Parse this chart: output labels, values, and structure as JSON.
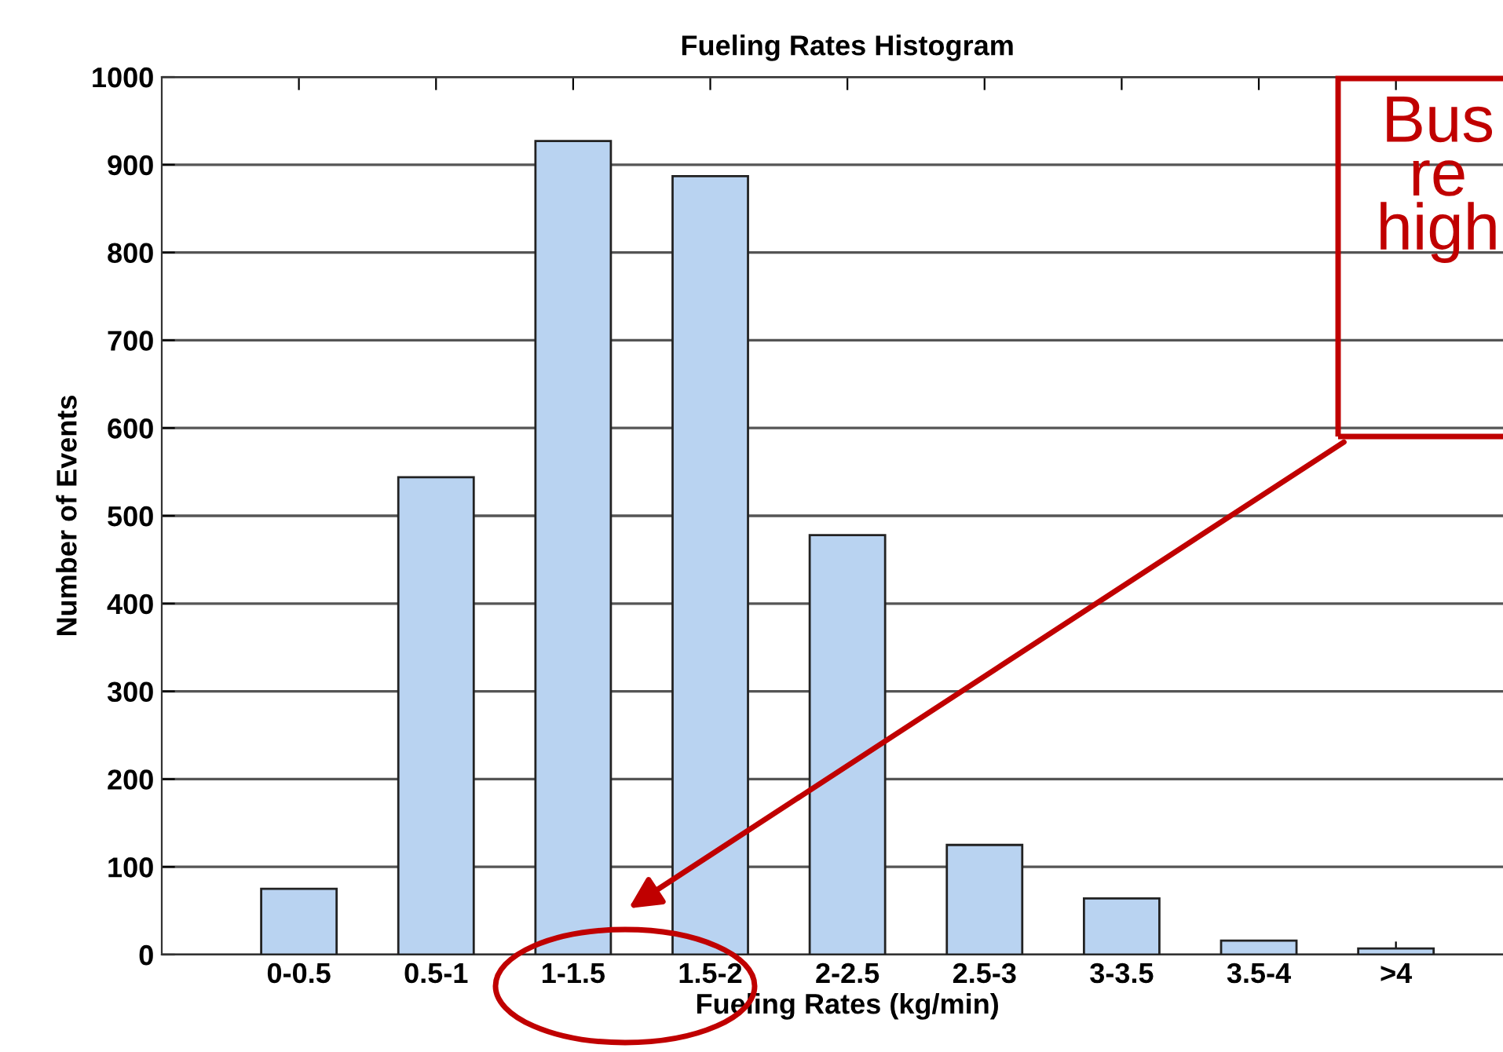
{
  "chart_data": {
    "type": "bar",
    "title": "Fueling Rates Histogram",
    "xlabel": "Fueling Rates (kg/min)",
    "ylabel": "Number of Events",
    "categories": [
      "0-0.5",
      "0.5-1",
      "1-1.5",
      "1.5-2",
      "2-2.5",
      "2.5-3",
      "3-3.5",
      "3.5-4",
      ">4"
    ],
    "values": [
      75,
      544,
      927,
      887,
      478,
      125,
      64,
      16,
      7
    ],
    "color": "#b9d3f1",
    "ylim": [
      0,
      1000
    ],
    "yticks": [
      0,
      100,
      200,
      300,
      400,
      500,
      600,
      700,
      800,
      900,
      1000
    ],
    "grid": "y",
    "annotations": [
      "Bus\nre\nhigh"
    ]
  }
}
